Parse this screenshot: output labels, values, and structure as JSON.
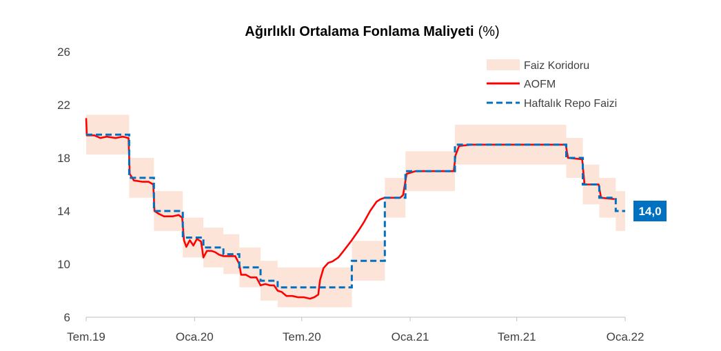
{
  "chart_data": {
    "type": "line",
    "title": "Ağırlıklı Ortalama Fonlama Maliyeti",
    "title_suffix": "(%)",
    "xlabel": "",
    "ylabel": "",
    "ylim": [
      6,
      26
    ],
    "y_ticks": [
      6,
      10,
      14,
      18,
      22,
      26
    ],
    "x_range": [
      "2019-07-01",
      "2022-01-01"
    ],
    "x_ticks": [
      {
        "date": "2019-07-01",
        "label": "Tem.19"
      },
      {
        "date": "2020-01-01",
        "label": "Oca.20"
      },
      {
        "date": "2020-07-01",
        "label": "Tem.20"
      },
      {
        "date": "2021-01-01",
        "label": "Oca.21"
      },
      {
        "date": "2021-07-01",
        "label": "Tem.21"
      },
      {
        "date": "2022-01-01",
        "label": "Oca.22"
      }
    ],
    "grid": false,
    "legend_position": "top-right",
    "colors": {
      "corridor": "#fde4d8",
      "aofm": "#ff0000",
      "repo": "#0070c0",
      "axis": "#bfbfbf",
      "badge": "#0070c0"
    },
    "series": [
      {
        "name": "Faiz Koridoru",
        "kind": "band",
        "segments": [
          {
            "start": "2019-07-01",
            "end": "2019-07-25",
            "low": 18.25,
            "high": 21.25
          },
          {
            "start": "2019-07-25",
            "end": "2019-09-12",
            "low": 18.25,
            "high": 21.25
          },
          {
            "start": "2019-09-12",
            "end": "2019-10-24",
            "low": 15.0,
            "high": 18.0
          },
          {
            "start": "2019-10-24",
            "end": "2019-12-12",
            "low": 12.5,
            "high": 15.5
          },
          {
            "start": "2019-12-12",
            "end": "2020-01-16",
            "low": 10.5,
            "high": 13.5
          },
          {
            "start": "2020-01-16",
            "end": "2020-02-19",
            "low": 9.75,
            "high": 12.75
          },
          {
            "start": "2020-02-19",
            "end": "2020-03-17",
            "low": 9.25,
            "high": 12.25
          },
          {
            "start": "2020-03-17",
            "end": "2020-04-22",
            "low": 8.25,
            "high": 11.25
          },
          {
            "start": "2020-04-22",
            "end": "2020-05-21",
            "low": 7.25,
            "high": 10.25
          },
          {
            "start": "2020-05-21",
            "end": "2020-09-24",
            "low": 6.75,
            "high": 9.75
          },
          {
            "start": "2020-09-24",
            "end": "2020-11-19",
            "low": 8.75,
            "high": 11.75
          },
          {
            "start": "2020-11-19",
            "end": "2020-12-24",
            "low": 13.5,
            "high": 16.5
          },
          {
            "start": "2020-12-24",
            "end": "2021-03-18",
            "low": 15.5,
            "high": 18.5
          },
          {
            "start": "2021-03-18",
            "end": "2021-09-23",
            "low": 17.5,
            "high": 20.5
          },
          {
            "start": "2021-09-23",
            "end": "2021-10-21",
            "low": 16.5,
            "high": 19.5
          },
          {
            "start": "2021-10-21",
            "end": "2021-11-18",
            "low": 14.5,
            "high": 17.5
          },
          {
            "start": "2021-11-18",
            "end": "2021-12-16",
            "low": 13.5,
            "high": 16.5
          },
          {
            "start": "2021-12-16",
            "end": "2022-01-01",
            "low": 12.5,
            "high": 15.5
          }
        ]
      },
      {
        "name": "AOFM",
        "kind": "line",
        "points": [
          [
            "2019-07-01",
            21.0
          ],
          [
            "2019-07-02",
            19.7
          ],
          [
            "2019-07-15",
            19.7
          ],
          [
            "2019-07-25",
            19.5
          ],
          [
            "2019-08-05",
            19.6
          ],
          [
            "2019-08-20",
            19.5
          ],
          [
            "2019-09-01",
            19.6
          ],
          [
            "2019-09-11",
            19.5
          ],
          [
            "2019-09-13",
            16.8
          ],
          [
            "2019-09-20",
            16.3
          ],
          [
            "2019-10-05",
            16.2
          ],
          [
            "2019-10-15",
            16.2
          ],
          [
            "2019-10-23",
            16.0
          ],
          [
            "2019-10-25",
            14.0
          ],
          [
            "2019-11-01",
            13.8
          ],
          [
            "2019-11-10",
            13.6
          ],
          [
            "2019-11-25",
            13.6
          ],
          [
            "2019-12-05",
            13.7
          ],
          [
            "2019-12-11",
            13.5
          ],
          [
            "2019-12-14",
            11.8
          ],
          [
            "2019-12-18",
            11.3
          ],
          [
            "2019-12-24",
            11.8
          ],
          [
            "2019-12-30",
            11.4
          ],
          [
            "2020-01-05",
            11.9
          ],
          [
            "2020-01-12",
            11.7
          ],
          [
            "2020-01-16",
            10.5
          ],
          [
            "2020-01-22",
            11.0
          ],
          [
            "2020-01-30",
            11.0
          ],
          [
            "2020-02-05",
            10.9
          ],
          [
            "2020-02-12",
            10.7
          ],
          [
            "2020-02-19",
            10.6
          ],
          [
            "2020-02-28",
            10.6
          ],
          [
            "2020-03-10",
            10.6
          ],
          [
            "2020-03-17",
            10.0
          ],
          [
            "2020-03-20",
            9.2
          ],
          [
            "2020-03-28",
            9.2
          ],
          [
            "2020-04-05",
            9.0
          ],
          [
            "2020-04-15",
            9.0
          ],
          [
            "2020-04-22",
            8.4
          ],
          [
            "2020-04-30",
            8.5
          ],
          [
            "2020-05-08",
            8.4
          ],
          [
            "2020-05-15",
            8.4
          ],
          [
            "2020-05-21",
            8.0
          ],
          [
            "2020-05-28",
            7.9
          ],
          [
            "2020-06-05",
            7.6
          ],
          [
            "2020-06-15",
            7.6
          ],
          [
            "2020-06-25",
            7.5
          ],
          [
            "2020-07-05",
            7.5
          ],
          [
            "2020-07-15",
            7.4
          ],
          [
            "2020-07-22",
            7.5
          ],
          [
            "2020-07-29",
            7.7
          ],
          [
            "2020-08-01",
            8.8
          ],
          [
            "2020-08-07",
            9.7
          ],
          [
            "2020-08-15",
            10.1
          ],
          [
            "2020-08-22",
            10.2
          ],
          [
            "2020-09-01",
            10.5
          ],
          [
            "2020-09-10",
            11.0
          ],
          [
            "2020-09-24",
            11.8
          ],
          [
            "2020-10-05",
            12.5
          ],
          [
            "2020-10-15",
            13.2
          ],
          [
            "2020-10-25",
            14.0
          ],
          [
            "2020-11-05",
            14.7
          ],
          [
            "2020-11-12",
            14.9
          ],
          [
            "2020-11-19",
            15.0
          ],
          [
            "2020-12-05",
            15.0
          ],
          [
            "2020-12-15",
            15.0
          ],
          [
            "2020-12-20",
            15.2
          ],
          [
            "2020-12-26",
            16.8
          ],
          [
            "2021-01-10",
            17.0
          ],
          [
            "2021-02-15",
            17.0
          ],
          [
            "2021-03-16",
            17.0
          ],
          [
            "2021-03-19",
            18.2
          ],
          [
            "2021-03-25",
            18.9
          ],
          [
            "2021-04-15",
            19.0
          ],
          [
            "2021-06-01",
            19.0
          ],
          [
            "2021-08-01",
            19.0
          ],
          [
            "2021-09-22",
            19.0
          ],
          [
            "2021-09-26",
            18.0
          ],
          [
            "2021-10-20",
            17.9
          ],
          [
            "2021-10-24",
            16.0
          ],
          [
            "2021-11-17",
            16.0
          ],
          [
            "2021-11-21",
            15.0
          ],
          [
            "2021-12-14",
            14.9
          ]
        ]
      },
      {
        "name": "Haftalık Repo Faizi",
        "kind": "step",
        "steps": [
          {
            "start": "2019-07-01",
            "end": "2019-09-12",
            "value": 19.75
          },
          {
            "start": "2019-09-12",
            "end": "2019-10-24",
            "value": 16.5
          },
          {
            "start": "2019-10-24",
            "end": "2019-12-12",
            "value": 14.0
          },
          {
            "start": "2019-12-12",
            "end": "2020-01-16",
            "value": 12.0
          },
          {
            "start": "2020-01-16",
            "end": "2020-02-19",
            "value": 11.25
          },
          {
            "start": "2020-02-19",
            "end": "2020-03-17",
            "value": 10.75
          },
          {
            "start": "2020-03-17",
            "end": "2020-04-22",
            "value": 9.75
          },
          {
            "start": "2020-04-22",
            "end": "2020-05-21",
            "value": 8.75
          },
          {
            "start": "2020-05-21",
            "end": "2020-09-24",
            "value": 8.25
          },
          {
            "start": "2020-09-24",
            "end": "2020-11-19",
            "value": 10.25
          },
          {
            "start": "2020-11-19",
            "end": "2020-12-24",
            "value": 15.0
          },
          {
            "start": "2020-12-24",
            "end": "2021-03-18",
            "value": 17.0
          },
          {
            "start": "2021-03-18",
            "end": "2021-09-23",
            "value": 19.0
          },
          {
            "start": "2021-09-23",
            "end": "2021-10-21",
            "value": 18.0
          },
          {
            "start": "2021-10-21",
            "end": "2021-11-18",
            "value": 16.0
          },
          {
            "start": "2021-11-18",
            "end": "2021-12-16",
            "value": 15.0
          },
          {
            "start": "2021-12-16",
            "end": "2022-01-01",
            "value": 14.0
          }
        ]
      }
    ],
    "annotations": [
      {
        "text": "14,0",
        "series": "Haftalık Repo Faizi",
        "value": 14.0
      }
    ]
  }
}
